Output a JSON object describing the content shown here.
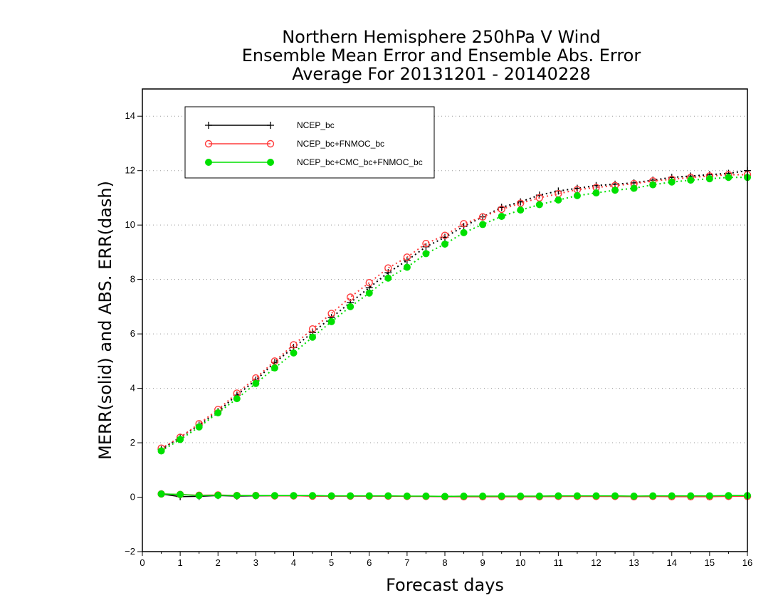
{
  "chart_data": {
    "type": "line",
    "title_lines": [
      "Northern Hemisphere 250hPa V Wind",
      "Ensemble Mean Error and Ensemble Abs. Error",
      "Average For 20131201 - 20140228"
    ],
    "xlabel": "Forecast days",
    "ylabel": "MERR(solid) and ABS. ERR(dash)",
    "xlim": [
      0,
      16
    ],
    "ylim": [
      -2,
      15
    ],
    "x_ticks": [
      "0",
      "1",
      "2",
      "3",
      "4",
      "5",
      "6",
      "7",
      "8",
      "9",
      "10",
      "11",
      "12",
      "13",
      "14",
      "15",
      "16"
    ],
    "y_ticks": [
      "-2",
      "0",
      "2",
      "4",
      "6",
      "8",
      "10",
      "12",
      "14"
    ],
    "grid": "horizontal dotted",
    "legend_position": "top-left",
    "x": [
      0.5,
      1,
      1.5,
      2,
      2.5,
      3,
      3.5,
      4,
      4.5,
      5,
      5.5,
      6,
      6.5,
      7,
      7.5,
      8,
      8.5,
      9,
      9.5,
      10,
      10.5,
      11,
      11.5,
      12,
      12.5,
      13,
      13.5,
      14,
      14.5,
      15,
      15.5,
      16
    ],
    "series": [
      {
        "name": "NCEP_bc",
        "color": "#000000",
        "marker": "plus",
        "abs_err": [
          1.75,
          2.2,
          2.65,
          3.15,
          3.75,
          4.3,
          4.95,
          5.5,
          6.05,
          6.6,
          7.15,
          7.7,
          8.25,
          8.7,
          9.2,
          9.55,
          9.95,
          10.3,
          10.65,
          10.85,
          11.1,
          11.25,
          11.35,
          11.45,
          11.5,
          11.55,
          11.65,
          11.75,
          11.8,
          11.85,
          11.9,
          12.0
        ],
        "mean_err": [
          0.12,
          0.02,
          0.03,
          0.06,
          0.04,
          0.05,
          0.05,
          0.05,
          0.04,
          0.04,
          0.04,
          0.04,
          0.04,
          0.03,
          0.03,
          0.02,
          0.02,
          0.02,
          0.02,
          0.02,
          0.02,
          0.03,
          0.03,
          0.03,
          0.03,
          0.02,
          0.03,
          0.03,
          0.03,
          0.03,
          0.04,
          0.04
        ]
      },
      {
        "name": "NCEP_bc+FNMOC_bc",
        "color": "#ff3b3b",
        "marker": "open-circle",
        "abs_err": [
          1.8,
          2.2,
          2.7,
          3.22,
          3.82,
          4.38,
          5.0,
          5.6,
          6.18,
          6.75,
          7.35,
          7.88,
          8.42,
          8.82,
          9.32,
          9.62,
          10.05,
          10.3,
          10.58,
          10.8,
          11.0,
          11.15,
          11.3,
          11.38,
          11.45,
          11.52,
          11.62,
          11.68,
          11.75,
          11.8,
          11.85,
          11.85
        ],
        "mean_err": [
          0.12,
          0.1,
          0.07,
          0.08,
          0.06,
          0.06,
          0.05,
          0.05,
          0.04,
          0.04,
          0.04,
          0.04,
          0.04,
          0.03,
          0.03,
          0.02,
          0.02,
          0.02,
          0.02,
          0.02,
          0.02,
          0.03,
          0.03,
          0.03,
          0.03,
          0.02,
          0.03,
          0.02,
          0.02,
          0.02,
          0.03,
          0.03
        ]
      },
      {
        "name": "NCEP_bc+CMC_bc+FNMOC_bc",
        "color": "#00e000",
        "marker": "filled-circle",
        "abs_err": [
          1.7,
          2.12,
          2.58,
          3.1,
          3.62,
          4.18,
          4.75,
          5.3,
          5.88,
          6.45,
          7.0,
          7.5,
          8.05,
          8.45,
          8.95,
          9.3,
          9.72,
          10.02,
          10.32,
          10.55,
          10.75,
          10.92,
          11.08,
          11.18,
          11.28,
          11.35,
          11.48,
          11.58,
          11.65,
          11.7,
          11.75,
          11.75
        ],
        "mean_err": [
          0.12,
          0.1,
          0.06,
          0.07,
          0.06,
          0.06,
          0.06,
          0.06,
          0.06,
          0.05,
          0.05,
          0.05,
          0.05,
          0.04,
          0.04,
          0.03,
          0.04,
          0.04,
          0.04,
          0.04,
          0.04,
          0.05,
          0.05,
          0.05,
          0.05,
          0.04,
          0.05,
          0.05,
          0.05,
          0.05,
          0.06,
          0.06
        ]
      }
    ]
  }
}
